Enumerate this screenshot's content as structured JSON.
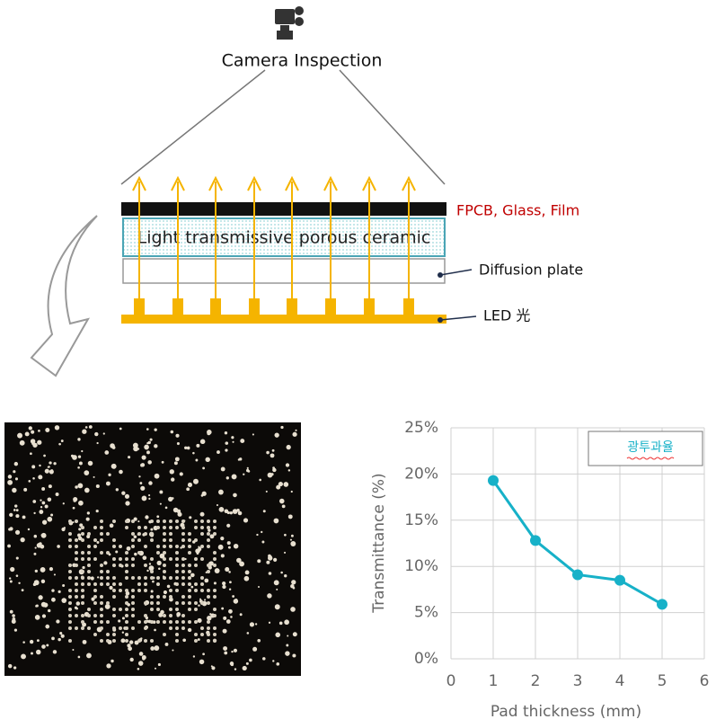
{
  "diagram": {
    "camera_label": "Camera Inspection",
    "layer_top_label": "FPCB, Glass, Film",
    "ceramic_label": "Light transmissive porous ceramic",
    "diffusion_label": "Diffusion plate",
    "led_label": "LED 光"
  },
  "chart_data": {
    "type": "line",
    "y_label": "Transmittance (%)",
    "x_label": "Pad thickness (mm)",
    "x": [
      1,
      2,
      3,
      4,
      5
    ],
    "series": [
      {
        "name": "광투과율",
        "color": "#17b1c8",
        "values": [
          19.3,
          12.8,
          9.1,
          8.5,
          5.9
        ]
      }
    ],
    "xlim": [
      0,
      6
    ],
    "xticks": [
      0,
      1,
      2,
      3,
      4,
      5,
      6
    ],
    "ylim": [
      0,
      25
    ],
    "yticks": [
      {
        "value": 0,
        "label": "0%"
      },
      {
        "value": 5,
        "label": "5%"
      },
      {
        "value": 10,
        "label": "10%"
      },
      {
        "value": 15,
        "label": "15%"
      },
      {
        "value": 20,
        "label": "20%"
      },
      {
        "value": 25,
        "label": "25%"
      }
    ],
    "grid": true,
    "legend": "top-right"
  }
}
